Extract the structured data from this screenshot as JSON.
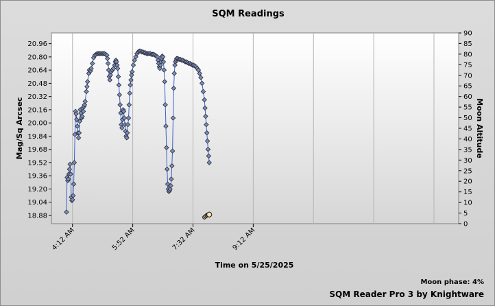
{
  "chart_data": {
    "type": "scatter",
    "title": "SQM Readings",
    "xlabel": "Time on 5/25/2025",
    "ylabel": "Mag/Sq Arcsec",
    "y2label": "Moon Altitude",
    "moon_phase": "Moon phase: 4%",
    "credit": "SQM Reader Pro 3 by Knightware",
    "x_tick_labels": [
      "4:12 AM",
      "5:52 AM",
      "7:32 AM",
      "9:12 AM"
    ],
    "x_tick_minutes": [
      252,
      352,
      452,
      552
    ],
    "xlim_minutes": [
      217,
      893
    ],
    "x_gridline_minutes": [
      252,
      352,
      452,
      552,
      652,
      752,
      852
    ],
    "y_ticks": [
      "18.88",
      "19.04",
      "19.20",
      "19.36",
      "19.52",
      "19.68",
      "19.84",
      "20.00",
      "20.16",
      "20.32",
      "20.48",
      "20.64",
      "20.80",
      "20.96"
    ],
    "ylim": [
      18.78,
      21.09
    ],
    "y2_ticks": [
      0,
      5,
      10,
      15,
      20,
      25,
      30,
      35,
      40,
      45,
      50,
      55,
      60,
      65,
      70,
      75,
      80,
      85,
      90
    ],
    "y2lim": [
      0,
      90
    ],
    "grid": true,
    "legend": "none",
    "series": [
      {
        "color": "#3a5fcd",
        "marker_color": "#7a8fb8",
        "points": [
          [
            242,
            18.92
          ],
          [
            243,
            19.34
          ],
          [
            244,
            19.3
          ],
          [
            245,
            19.32
          ],
          [
            246,
            19.38
          ],
          [
            247,
            19.44
          ],
          [
            248,
            19.5
          ],
          [
            249,
            19.38
          ],
          [
            250,
            19.1
          ],
          [
            251,
            19.06
          ],
          [
            252,
            19.07
          ],
          [
            253,
            19.12
          ],
          [
            254,
            19.26
          ],
          [
            255,
            19.52
          ],
          [
            256,
            19.86
          ],
          [
            257,
            20.14
          ],
          [
            258,
            20.11
          ],
          [
            259,
            20.04
          ],
          [
            260,
            19.96
          ],
          [
            261,
            19.88
          ],
          [
            262,
            19.82
          ],
          [
            263,
            19.88
          ],
          [
            264,
            20.02
          ],
          [
            265,
            20.16
          ],
          [
            266,
            20.12
          ],
          [
            267,
            20.06
          ],
          [
            268,
            20.08
          ],
          [
            269,
            20.18
          ],
          [
            270,
            20.14
          ],
          [
            271,
            20.2
          ],
          [
            272,
            20.22
          ],
          [
            273,
            20.26
          ],
          [
            275,
            20.38
          ],
          [
            276,
            20.44
          ],
          [
            277,
            20.5
          ],
          [
            279,
            20.6
          ],
          [
            280,
            20.64
          ],
          [
            282,
            20.63
          ],
          [
            283,
            20.66
          ],
          [
            285,
            20.72
          ],
          [
            287,
            20.79
          ],
          [
            289,
            20.82
          ],
          [
            291,
            20.83
          ],
          [
            293,
            20.84
          ],
          [
            295,
            20.84
          ],
          [
            297,
            20.84
          ],
          [
            299,
            20.84
          ],
          [
            301,
            20.84
          ],
          [
            303,
            20.84
          ],
          [
            305,
            20.84
          ],
          [
            307,
            20.83
          ],
          [
            309,
            20.82
          ],
          [
            310,
            20.78
          ],
          [
            311,
            20.72
          ],
          [
            312,
            20.64
          ],
          [
            313,
            20.56
          ],
          [
            314,
            20.52
          ],
          [
            315,
            20.58
          ],
          [
            316,
            20.62
          ],
          [
            318,
            20.64
          ],
          [
            320,
            20.66
          ],
          [
            322,
            20.7
          ],
          [
            323,
            20.74
          ],
          [
            324,
            20.76
          ],
          [
            325,
            20.74
          ],
          [
            326,
            20.7
          ],
          [
            327,
            20.66
          ],
          [
            328,
            20.56
          ],
          [
            329,
            20.46
          ],
          [
            330,
            20.34
          ],
          [
            331,
            20.22
          ],
          [
            332,
            20.12
          ],
          [
            333,
            19.98
          ],
          [
            334,
            19.94
          ],
          [
            335,
            20.04
          ],
          [
            336,
            20.16
          ],
          [
            337,
            20.14
          ],
          [
            338,
            20.06
          ],
          [
            339,
            19.98
          ],
          [
            340,
            19.9
          ],
          [
            341,
            19.84
          ],
          [
            342,
            19.82
          ],
          [
            343,
            19.88
          ],
          [
            344,
            19.98
          ],
          [
            345,
            20.06
          ],
          [
            346,
            20.22
          ],
          [
            347,
            20.36
          ],
          [
            348,
            20.46
          ],
          [
            349,
            20.52
          ],
          [
            350,
            20.58
          ],
          [
            351,
            20.62
          ],
          [
            353,
            20.7
          ],
          [
            355,
            20.76
          ],
          [
            357,
            20.8
          ],
          [
            359,
            20.84
          ],
          [
            361,
            20.86
          ],
          [
            363,
            20.87
          ],
          [
            365,
            20.87
          ],
          [
            367,
            20.86
          ],
          [
            369,
            20.86
          ],
          [
            371,
            20.85
          ],
          [
            373,
            20.85
          ],
          [
            375,
            20.84
          ],
          [
            377,
            20.84
          ],
          [
            379,
            20.84
          ],
          [
            381,
            20.84
          ],
          [
            383,
            20.83
          ],
          [
            385,
            20.83
          ],
          [
            387,
            20.83
          ],
          [
            389,
            20.82
          ],
          [
            391,
            20.81
          ],
          [
            393,
            20.8
          ],
          [
            394,
            20.76
          ],
          [
            395,
            20.72
          ],
          [
            396,
            20.68
          ],
          [
            397,
            20.66
          ],
          [
            398,
            20.7
          ],
          [
            399,
            20.74
          ],
          [
            400,
            20.78
          ],
          [
            401,
            20.81
          ],
          [
            402,
            20.8
          ],
          [
            403,
            20.74
          ],
          [
            404,
            20.64
          ],
          [
            405,
            20.5
          ],
          [
            406,
            20.22
          ],
          [
            407,
            19.96
          ],
          [
            408,
            19.7
          ],
          [
            409,
            19.44
          ],
          [
            410,
            19.26
          ],
          [
            411,
            19.2
          ],
          [
            412,
            19.17
          ],
          [
            413,
            19.18
          ],
          [
            414,
            19.2
          ],
          [
            415,
            19.24
          ],
          [
            416,
            19.32
          ],
          [
            417,
            19.48
          ],
          [
            418,
            19.66
          ],
          [
            419,
            20.06
          ],
          [
            420,
            20.42
          ],
          [
            421,
            20.6
          ],
          [
            422,
            20.7
          ],
          [
            423,
            20.74
          ],
          [
            424,
            20.76
          ],
          [
            425,
            20.78
          ],
          [
            427,
            20.78
          ],
          [
            429,
            20.77
          ],
          [
            431,
            20.77
          ],
          [
            433,
            20.76
          ],
          [
            435,
            20.76
          ],
          [
            437,
            20.75
          ],
          [
            439,
            20.74
          ],
          [
            441,
            20.74
          ],
          [
            443,
            20.73
          ],
          [
            445,
            20.72
          ],
          [
            447,
            20.72
          ],
          [
            449,
            20.71
          ],
          [
            451,
            20.7
          ],
          [
            453,
            20.7
          ],
          [
            455,
            20.69
          ],
          [
            457,
            20.68
          ],
          [
            459,
            20.66
          ],
          [
            461,
            20.64
          ],
          [
            463,
            20.6
          ],
          [
            465,
            20.55
          ],
          [
            467,
            20.48
          ],
          [
            469,
            20.38
          ],
          [
            471,
            20.28
          ],
          [
            472,
            20.18
          ],
          [
            473,
            20.08
          ],
          [
            474,
            19.98
          ],
          [
            475,
            19.88
          ],
          [
            476,
            19.78
          ],
          [
            477,
            19.68
          ],
          [
            478,
            19.6
          ],
          [
            479,
            19.52
          ]
        ]
      }
    ],
    "moon_points": [
      [
        471,
        3
      ],
      [
        473,
        3.5
      ],
      [
        475,
        4
      ],
      [
        477,
        4.3
      ],
      [
        479,
        4.3
      ]
    ]
  }
}
